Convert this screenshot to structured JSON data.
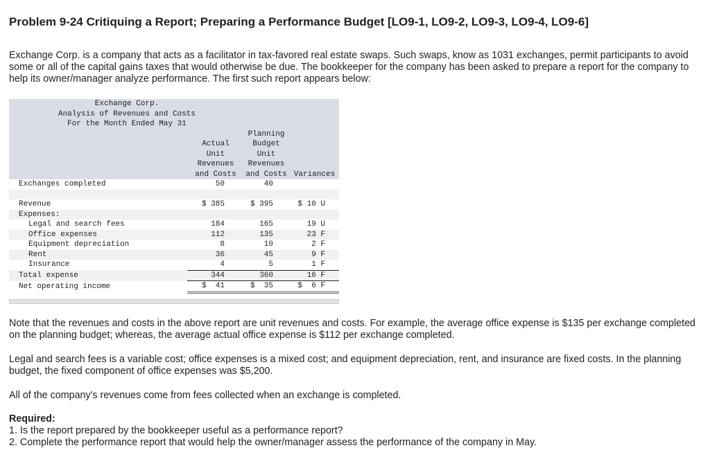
{
  "title": "Problem 9-24 Critiquing a Report; Preparing a Performance Budget [LO9-1, LO9-2, LO9-3, LO9-4, LO9-6]",
  "intro": "Exchange Corp. is a company that acts as a facilitator in tax-favored real estate swaps. Such swaps, know as 1031 exchanges, permit participants to avoid some or all of the capital gains taxes that would otherwise be due. The bookkeeper for the company has been asked to prepare a report for the company to help its owner/manager analyze performance. The first such report appears below:",
  "report": {
    "company": "Exchange Corp.",
    "subtitle": "Analysis of Revenues and Costs",
    "period": "For the Month Ended May 31",
    "col_actual": "Actual\nUnit\nRevenues\nand Costs",
    "col_planning": "Planning\nBudget\nUnit\nRevenues\nand Costs",
    "col_variance": "Variances",
    "rows": [
      {
        "label": "Exchanges completed",
        "actual": "50",
        "planning": "40",
        "variance": ""
      },
      {
        "label": "Revenue",
        "actual": "$ 385",
        "planning": "$ 395",
        "variance": "$ 10 U"
      },
      {
        "label": "Expenses:",
        "actual": "",
        "planning": "",
        "variance": ""
      },
      {
        "label": "Legal and search fees",
        "actual": "184",
        "planning": "165",
        "variance": "19 U"
      },
      {
        "label": "Office expenses",
        "actual": "112",
        "planning": "135",
        "variance": "23 F"
      },
      {
        "label": "Equipment depreciation",
        "actual": "8",
        "planning": "10",
        "variance": "2 F"
      },
      {
        "label": "Rent",
        "actual": "36",
        "planning": "45",
        "variance": "9 F"
      },
      {
        "label": "Insurance",
        "actual": "4",
        "planning": "5",
        "variance": "1 F"
      },
      {
        "label": "Total expense",
        "actual": "344",
        "planning": "360",
        "variance": "16 F"
      },
      {
        "label": "Net operating income",
        "actual": "$  41",
        "planning": "$  35",
        "variance": "$  6 F"
      }
    ]
  },
  "note1": "Note that the revenues and costs in the above report are unit revenues and costs. For example, the average office expense is $135 per exchange completed on the planning budget; whereas, the average actual office expense is $112 per exchange completed.",
  "note2": "Legal and search fees is a variable cost; office expenses is a mixed cost; and equipment depreciation, rent, and insurance are fixed costs. In the planning budget, the fixed component of office expenses was $5,200.",
  "note3": "All of the company's revenues come from fees collected when an exchange is completed.",
  "required_label": "Required:",
  "req1": "1. Is the report prepared by the bookkeeper useful as a performance report?",
  "req2": "2. Complete the performance report that would help the owner/manager assess the performance of the company in May."
}
